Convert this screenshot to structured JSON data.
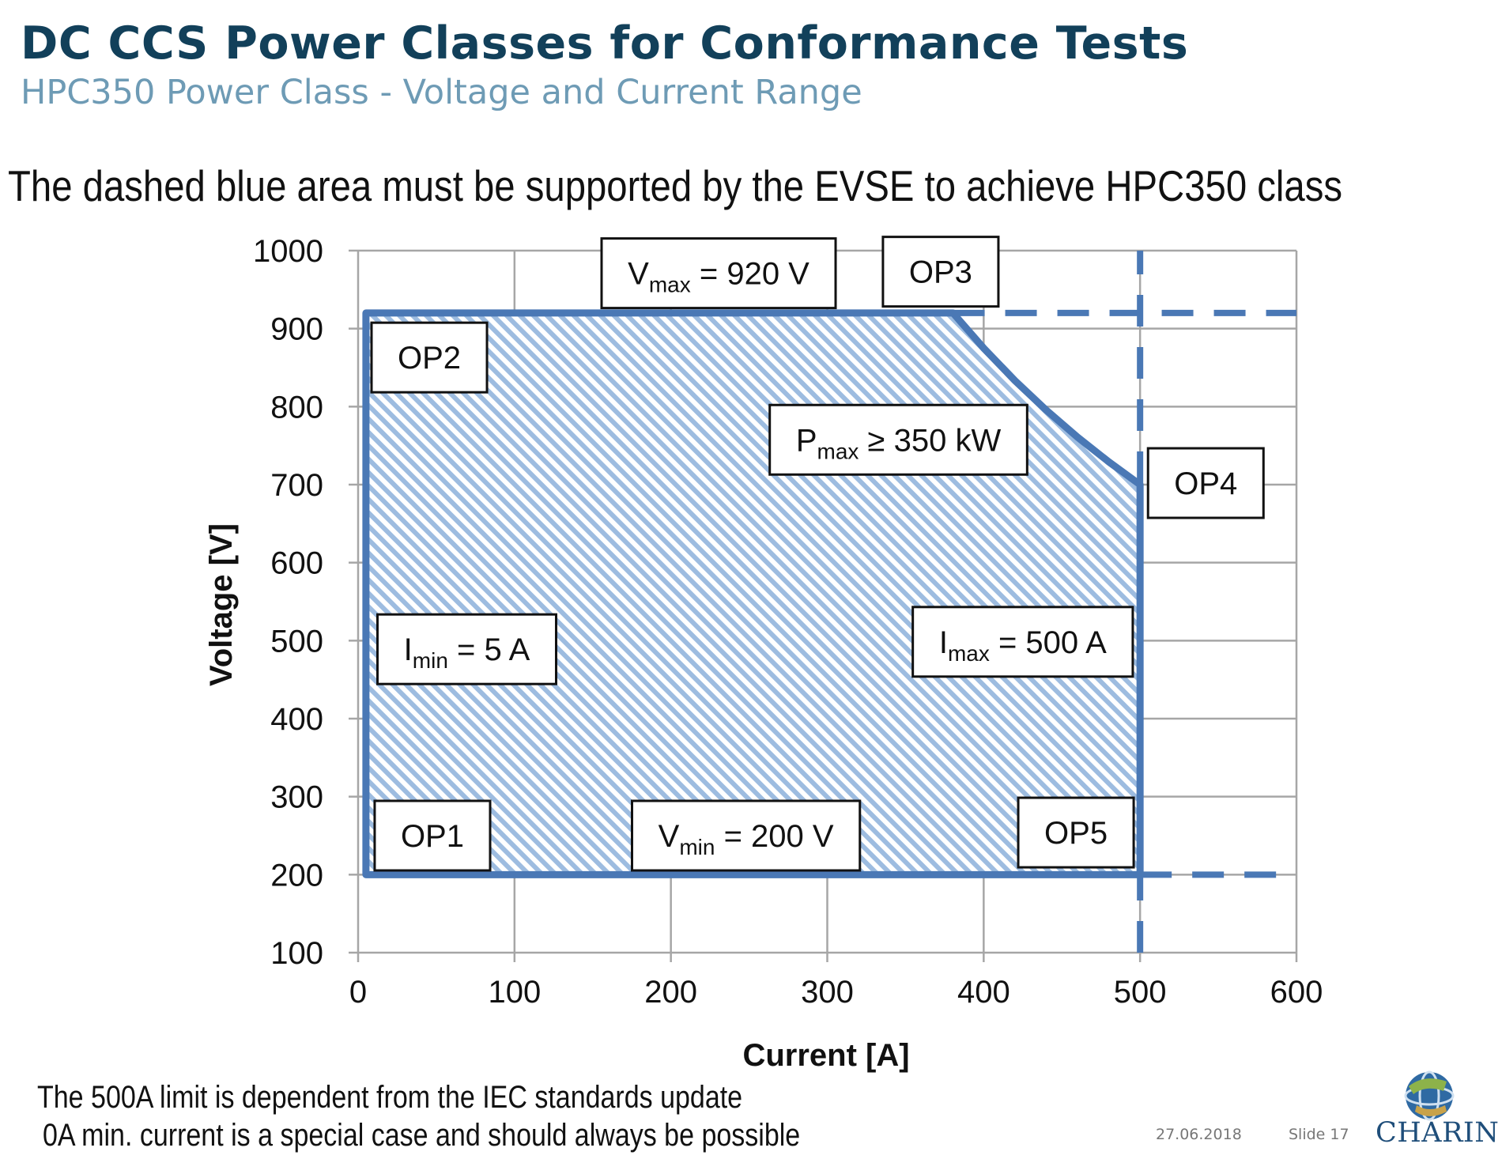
{
  "slide": {
    "title": "DC CCS Power Classes for Conformance Tests",
    "subtitle": "HPC350 Power Class - Voltage and Current Range",
    "headline": "The dashed blue area must be supported by the EVSE to achieve HPC350 class",
    "notes": [
      "The 500A limit is dependent from the IEC standards update",
      "0A min. current is a special case and should always be possible"
    ],
    "footer": {
      "date": "27.06.2018",
      "slide_label": "Slide 17",
      "logo_text": "CHARIN",
      "logo_icon": "globe-icon"
    }
  },
  "chart_data": {
    "type": "area",
    "xlabel": "Current [A]",
    "ylabel": "Voltage [V]",
    "xlim": [
      0,
      600
    ],
    "ylim": [
      100,
      1000
    ],
    "xticks": [
      0,
      100,
      200,
      300,
      400,
      500,
      600
    ],
    "yticks": [
      100,
      200,
      300,
      400,
      500,
      600,
      700,
      800,
      900,
      1000
    ],
    "grid": true,
    "colors": {
      "region": "#4a78b5",
      "hatch": "#9dbce0",
      "grid": "#a6a6a6"
    },
    "region": {
      "x": [
        5,
        5,
        380.4,
        400,
        420,
        440,
        460,
        480,
        500,
        500
      ],
      "y": [
        200,
        920,
        920,
        875,
        833.3,
        795.5,
        760.9,
        729.2,
        700,
        200
      ]
    },
    "dashed_limits": [
      {
        "x": [
          380.4,
          600
        ],
        "y": [
          920,
          920
        ]
      },
      {
        "x": [
          500,
          500
        ],
        "y": [
          100,
          1000
        ]
      },
      {
        "x": [
          500,
          600
        ],
        "y": [
          200,
          200
        ]
      }
    ],
    "annotations": [
      {
        "id": "vmax",
        "main": "V",
        "sub": "max",
        "rest": " = 920 V",
        "x": 230.5,
        "y": 971
      },
      {
        "id": "op3",
        "main": "OP3",
        "sub": "",
        "rest": "",
        "x": 372.5,
        "y": 973
      },
      {
        "id": "op2",
        "main": "OP2",
        "sub": "",
        "rest": "",
        "x": 45.5,
        "y": 863
      },
      {
        "id": "pmax",
        "main": "P",
        "sub": "max",
        "rest": " ≥ 350 kW",
        "x": 345.5,
        "y": 757.5
      },
      {
        "id": "op4",
        "main": "OP4",
        "sub": "",
        "rest": "",
        "x": 542,
        "y": 702
      },
      {
        "id": "imin",
        "main": "I",
        "sub": "min",
        "rest": " = 5 A",
        "x": 69.5,
        "y": 489
      },
      {
        "id": "imax",
        "main": "I",
        "sub": "max",
        "rest": " = 500 A",
        "x": 425,
        "y": 498.5
      },
      {
        "id": "op1",
        "main": "OP1",
        "sub": "",
        "rest": "",
        "x": 47.5,
        "y": 250
      },
      {
        "id": "vmin",
        "main": "V",
        "sub": "min",
        "rest": " = 200 V",
        "x": 248,
        "y": 250
      },
      {
        "id": "op5",
        "main": "OP5",
        "sub": "",
        "rest": "",
        "x": 459,
        "y": 254
      }
    ]
  }
}
